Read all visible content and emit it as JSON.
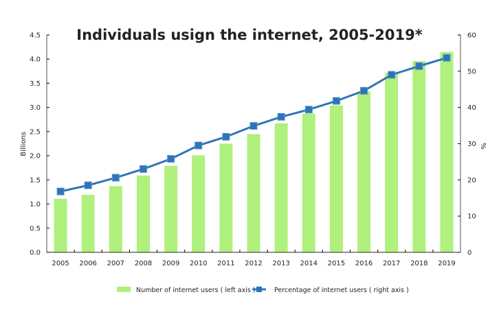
{
  "chart_data": {
    "type": "bar+line",
    "title": "Individuals usign the internet, 2005-2019*",
    "categories": [
      "2005",
      "2006",
      "2007",
      "2008",
      "2009",
      "2010",
      "2011",
      "2012",
      "2013",
      "2014",
      "2015",
      "2016",
      "2017",
      "2018",
      "2019"
    ],
    "series": [
      {
        "name": "Number of internet users ( left axis )",
        "type": "bar",
        "axis": "left",
        "color": "#b0f07c",
        "values": [
          1.11,
          1.19,
          1.37,
          1.59,
          1.79,
          2.01,
          2.25,
          2.45,
          2.67,
          2.87,
          3.04,
          3.33,
          3.72,
          3.96,
          4.15
        ]
      },
      {
        "name": "Percentage of internet users ( right axis )",
        "type": "line",
        "axis": "right",
        "color": "#2f74b8",
        "marker": "square",
        "values": [
          16.8,
          18.5,
          20.6,
          23.0,
          25.8,
          29.5,
          31.9,
          34.9,
          37.4,
          39.4,
          41.8,
          44.6,
          49.0,
          51.4,
          53.7
        ]
      }
    ],
    "ylabel_left": "Billions",
    "ylabel_right": "%",
    "ylim_left": [
      0,
      4.5
    ],
    "ylim_right": [
      0,
      60
    ],
    "yticks_left": [
      "0.0",
      "0.5",
      "1.0",
      "1.5",
      "2.0",
      "2.5",
      "3.0",
      "3.5",
      "4.0",
      "4.5"
    ],
    "yticks_right": [
      "0",
      "10",
      "20",
      "30",
      "40",
      "50",
      "60"
    ],
    "grid": false,
    "legend_position": "bottom"
  }
}
